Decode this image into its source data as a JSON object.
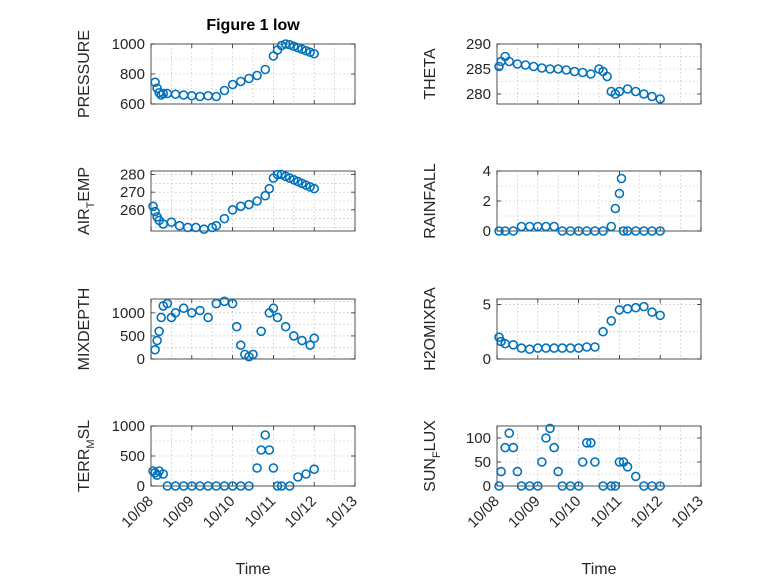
{
  "figure_title": "Figure 1 low",
  "colors": {
    "marker": "#0072BD",
    "axis": "#262626",
    "grid": "#b0b0b0"
  },
  "chart_data": [
    {
      "type": "scatter",
      "ylabel": "PRESSURE",
      "ylim": [
        600,
        1000
      ],
      "yticks": [
        600,
        800,
        1000
      ],
      "ytick_labels": [
        "600",
        "800",
        "1000"
      ],
      "xlim": [
        0,
        5
      ],
      "xticks": [
        0,
        1,
        2,
        3,
        4,
        5
      ],
      "xtick_labels": [],
      "xlabel": "",
      "grid": true,
      "series": [
        {
          "x": [
            0.1,
            0.15,
            0.2,
            0.25,
            0.3,
            0.4,
            0.6,
            0.8,
            1.0,
            1.2,
            1.4,
            1.6,
            1.8,
            2.0,
            2.2,
            2.4,
            2.6,
            2.8,
            3.0,
            3.1,
            3.2,
            3.3,
            3.4,
            3.5,
            3.6,
            3.7,
            3.8,
            3.9,
            4.0
          ],
          "y": [
            745,
            705,
            675,
            660,
            670,
            670,
            665,
            660,
            655,
            650,
            655,
            650,
            690,
            730,
            750,
            770,
            790,
            830,
            920,
            960,
            990,
            1000,
            995,
            985,
            975,
            965,
            955,
            945,
            935
          ]
        }
      ]
    },
    {
      "type": "scatter",
      "ylabel": "THETA",
      "ylim": [
        278,
        290
      ],
      "yticks": [
        280,
        285,
        290
      ],
      "ytick_labels": [
        "280",
        "285",
        "290"
      ],
      "xlim": [
        0,
        5
      ],
      "xticks": [
        0,
        1,
        2,
        3,
        4,
        5
      ],
      "xtick_labels": [],
      "xlabel": "",
      "grid": true,
      "series": [
        {
          "x": [
            0.05,
            0.1,
            0.2,
            0.3,
            0.5,
            0.7,
            0.9,
            1.1,
            1.3,
            1.5,
            1.7,
            1.9,
            2.1,
            2.3,
            2.5,
            2.6,
            2.7,
            2.8,
            2.9,
            3.0,
            3.2,
            3.4,
            3.6,
            3.8,
            4.0
          ],
          "y": [
            285.5,
            286.5,
            287.5,
            286.5,
            286,
            285.8,
            285.5,
            285.2,
            285,
            285,
            284.8,
            284.5,
            284.3,
            284,
            285,
            284.5,
            283.5,
            280.5,
            280,
            280.5,
            281,
            280.5,
            280,
            279.5,
            279
          ]
        }
      ]
    },
    {
      "type": "scatter",
      "ylabel": "AIR_TEMP",
      "ylabel_main": "AIR",
      "ylabel_sub": "T",
      "ylabel_rest": "EMP",
      "ylim": [
        248,
        282
      ],
      "yticks": [
        260,
        270,
        280
      ],
      "ytick_labels": [
        "260",
        "270",
        "280"
      ],
      "xlim": [
        0,
        5
      ],
      "xticks": [
        0,
        1,
        2,
        3,
        4,
        5
      ],
      "xtick_labels": [],
      "xlabel": "",
      "grid": true,
      "series": [
        {
          "x": [
            0.05,
            0.1,
            0.15,
            0.2,
            0.3,
            0.5,
            0.7,
            0.9,
            1.1,
            1.3,
            1.5,
            1.6,
            1.8,
            2.0,
            2.2,
            2.4,
            2.6,
            2.8,
            2.9,
            3.0,
            3.1,
            3.2,
            3.3,
            3.4,
            3.5,
            3.6,
            3.7,
            3.8,
            3.9,
            4.0
          ],
          "y": [
            262,
            259,
            256,
            254,
            252,
            253,
            251,
            250,
            250,
            249,
            250,
            251,
            255,
            260,
            262,
            263,
            265,
            268,
            272,
            278,
            280,
            280,
            279,
            278,
            277,
            276,
            275,
            274,
            273,
            272
          ]
        }
      ]
    },
    {
      "type": "scatter",
      "ylabel": "RAINFALL",
      "ylim": [
        0,
        4
      ],
      "yticks": [
        0,
        2,
        4
      ],
      "ytick_labels": [
        "0",
        "2",
        "4"
      ],
      "xlim": [
        0,
        5
      ],
      "xticks": [
        0,
        1,
        2,
        3,
        4,
        5
      ],
      "xtick_labels": [],
      "xlabel": "",
      "grid": true,
      "series": [
        {
          "x": [
            0.05,
            0.2,
            0.4,
            0.6,
            0.8,
            1.0,
            1.2,
            1.4,
            1.6,
            1.8,
            2.0,
            2.2,
            2.4,
            2.6,
            2.8,
            2.9,
            3.0,
            3.05,
            3.1,
            3.2,
            3.4,
            3.6,
            3.8,
            4.0
          ],
          "y": [
            0,
            0,
            0,
            0.3,
            0.3,
            0.3,
            0.3,
            0.3,
            0,
            0,
            0,
            0,
            0,
            0,
            0.3,
            1.5,
            2.5,
            3.5,
            0,
            0,
            0,
            0,
            0,
            0
          ]
        }
      ]
    },
    {
      "type": "scatter",
      "ylabel": "MIXDEPTH",
      "ylim": [
        0,
        1300
      ],
      "yticks": [
        0,
        500,
        1000
      ],
      "ytick_labels": [
        "0",
        "500",
        "1000"
      ],
      "xlim": [
        0,
        5
      ],
      "xticks": [
        0,
        1,
        2,
        3,
        4,
        5
      ],
      "xtick_labels": [],
      "xlabel": "",
      "grid": true,
      "series": [
        {
          "x": [
            0.1,
            0.15,
            0.2,
            0.25,
            0.3,
            0.4,
            0.5,
            0.6,
            0.8,
            1.0,
            1.2,
            1.4,
            1.6,
            1.8,
            2.0,
            2.1,
            2.2,
            2.3,
            2.4,
            2.5,
            2.7,
            2.9,
            3.0,
            3.1,
            3.3,
            3.5,
            3.7,
            3.9,
            4.0
          ],
          "y": [
            200,
            400,
            600,
            900,
            1150,
            1200,
            900,
            1000,
            1100,
            1000,
            1050,
            900,
            1200,
            1250,
            1200,
            700,
            300,
            100,
            50,
            100,
            600,
            1000,
            1100,
            900,
            700,
            500,
            400,
            300,
            450
          ]
        }
      ]
    },
    {
      "type": "scatter",
      "ylabel": "H2OMIXRA",
      "ylim": [
        0,
        5.5
      ],
      "yticks": [
        0,
        5
      ],
      "ytick_labels": [
        "0",
        "5"
      ],
      "xlim": [
        0,
        5
      ],
      "xticks": [
        0,
        1,
        2,
        3,
        4,
        5
      ],
      "xtick_labels": [],
      "xlabel": "",
      "grid": true,
      "series": [
        {
          "x": [
            0.05,
            0.1,
            0.2,
            0.4,
            0.6,
            0.8,
            1.0,
            1.2,
            1.4,
            1.6,
            1.8,
            2.0,
            2.2,
            2.4,
            2.6,
            2.8,
            3.0,
            3.2,
            3.4,
            3.6,
            3.8,
            4.0
          ],
          "y": [
            2.0,
            1.6,
            1.4,
            1.3,
            1.0,
            0.9,
            1.0,
            1.0,
            1.0,
            1.0,
            1.0,
            1.0,
            1.1,
            1.1,
            2.5,
            3.5,
            4.5,
            4.6,
            4.7,
            4.8,
            4.3,
            4.0
          ]
        }
      ]
    },
    {
      "type": "scatter",
      "ylabel": "TERR_MSL",
      "ylabel_main": "TERR",
      "ylabel_sub": "M",
      "ylabel_rest": "SL",
      "ylim": [
        0,
        1000
      ],
      "yticks": [
        0,
        500,
        1000
      ],
      "ytick_labels": [
        "0",
        "500",
        "1000"
      ],
      "xlim": [
        0,
        5
      ],
      "xticks": [
        0,
        1,
        2,
        3,
        4,
        5
      ],
      "xtick_labels": [
        "10/08",
        "10/09",
        "10/10",
        "10/11",
        "10/12",
        "10/13"
      ],
      "xlabel": "Time",
      "grid": true,
      "series": [
        {
          "x": [
            0.05,
            0.1,
            0.15,
            0.2,
            0.3,
            0.4,
            0.6,
            0.8,
            1.0,
            1.2,
            1.4,
            1.6,
            1.8,
            2.0,
            2.2,
            2.4,
            2.6,
            2.7,
            2.8,
            2.9,
            3.0,
            3.1,
            3.2,
            3.4,
            3.6,
            3.8,
            4.0
          ],
          "y": [
            250,
            220,
            180,
            250,
            200,
            0,
            0,
            0,
            0,
            0,
            0,
            0,
            0,
            0,
            0,
            0,
            300,
            600,
            850,
            600,
            300,
            0,
            0,
            0,
            150,
            200,
            280
          ]
        }
      ]
    },
    {
      "type": "scatter",
      "ylabel": "SUN_FLUX",
      "ylabel_main": "SUN",
      "ylabel_sub": "F",
      "ylabel_rest": "LUX",
      "ylim": [
        0,
        125
      ],
      "yticks": [
        0,
        50,
        100
      ],
      "ytick_labels": [
        "0",
        "50",
        "100"
      ],
      "xlim": [
        0,
        5
      ],
      "xticks": [
        0,
        1,
        2,
        3,
        4,
        5
      ],
      "xtick_labels": [
        "10/08",
        "10/09",
        "10/10",
        "10/11",
        "10/12",
        "10/13"
      ],
      "xlabel": "Time",
      "grid": true,
      "series": [
        {
          "x": [
            0.05,
            0.1,
            0.2,
            0.3,
            0.4,
            0.5,
            0.6,
            0.8,
            1.0,
            1.1,
            1.2,
            1.3,
            1.4,
            1.5,
            1.6,
            1.8,
            2.0,
            2.1,
            2.2,
            2.3,
            2.4,
            2.6,
            2.8,
            2.9,
            3.0,
            3.1,
            3.2,
            3.4,
            3.6,
            3.8,
            4.0
          ],
          "y": [
            0,
            30,
            80,
            110,
            80,
            30,
            0,
            0,
            0,
            50,
            100,
            120,
            80,
            30,
            0,
            0,
            0,
            50,
            90,
            90,
            50,
            0,
            0,
            0,
            50,
            50,
            40,
            20,
            0,
            0,
            0
          ]
        }
      ]
    }
  ]
}
